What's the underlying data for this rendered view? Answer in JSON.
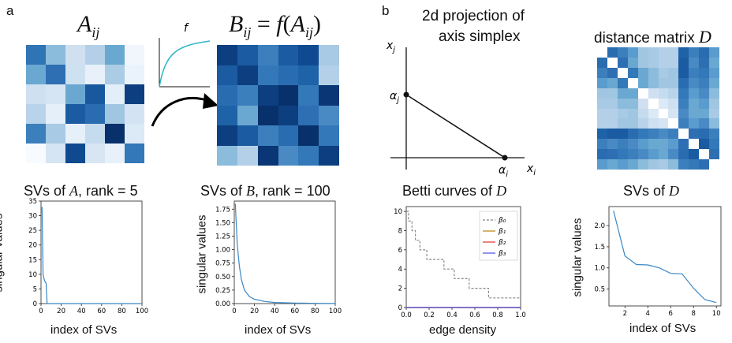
{
  "panels": {
    "a": "a",
    "b": "b"
  },
  "panel_a": {
    "matrix_A_title": "A",
    "matrix_A_sub": "ij",
    "function_label": "f",
    "matrix_B_title_lhs": "B",
    "matrix_B_title_rhs": " = f(A",
    "matrix_B_title_close": ")",
    "matrix_B_sub": "ij",
    "matrix_A_colors": [
      [
        "#2f74b5",
        "#8cbcdc",
        "#d0e0f1",
        "#b4d0e8",
        "#69a9d1",
        "#f0f6fc"
      ],
      [
        "#6aa8d1",
        "#2e6fb3",
        "#cde1f1",
        "#e8f1fa",
        "#abcce5",
        "#eaf2fb"
      ],
      [
        "#cfe0f1",
        "#d6e5f3",
        "#6aa8d1",
        "#19589f",
        "#e2eef8",
        "#0d3f80"
      ],
      [
        "#b9d3ea",
        "#e4eff9",
        "#1a5ba2",
        "#2a6cb0",
        "#a1c6e2",
        "#d3e3f3"
      ],
      [
        "#3c7fbd",
        "#a8cae4",
        "#e6f0f9",
        "#c5dbee",
        "#08306b",
        "#dce9f6"
      ],
      [
        "#f7fbff",
        "#d6e5f3",
        "#0f4a91",
        "#d8e6f4",
        "#e8f1fa",
        "#3378b8"
      ]
    ],
    "matrix_B_colors": [
      [
        "#0d3f80",
        "#1a5ba2",
        "#3c7fbd",
        "#1a5ba2",
        "#0f4a91",
        "#a8cae4"
      ],
      [
        "#1a5ba2",
        "#0d3f80",
        "#3378b8",
        "#2a6cb0",
        "#1e63a8",
        "#b4d0e8"
      ],
      [
        "#2a6cb0",
        "#3c7fbd",
        "#0d3f80",
        "#08306b",
        "#3378b8",
        "#0a3675"
      ],
      [
        "#1e63a8",
        "#6aa8d1",
        "#08306b",
        "#0d3f80",
        "#2e6fb3",
        "#4a8ac4"
      ],
      [
        "#0d3f80",
        "#1a5ba2",
        "#3c7fbd",
        "#2a6cb0",
        "#08306b",
        "#3378b8"
      ],
      [
        "#8cbcdc",
        "#b4d0e8",
        "#0a3675",
        "#4a8ac4",
        "#3378b8",
        "#0d3f80"
      ]
    ],
    "sv_A_title": "SVs of ",
    "sv_A_var": "A",
    "sv_A_rank": ", rank = 5",
    "sv_B_title": "SVs of ",
    "sv_B_var": "B",
    "sv_B_rank": ", rank = 100",
    "ylabel": "singular values",
    "xlabel": "index of SVs"
  },
  "panel_b": {
    "projection_title_1": "2d projection of",
    "projection_title_2": "axis simplex",
    "xj": "x",
    "xj_sub": "j",
    "xi": "x",
    "xi_sub": "i",
    "alpha_j": "α",
    "alpha_j_sub": "j",
    "alpha_i": "α",
    "alpha_i_sub": "i",
    "distance_title": "distance matrix ",
    "distance_var": "D",
    "betti_title": "Betti curves of ",
    "betti_var": "D",
    "betti_xlabel": "edge density",
    "svD_title": "SVs of ",
    "svD_var": "D",
    "svD_ylabel": "singular values",
    "svD_xlabel": "index of SVs",
    "distance_colors": [
      [
        "#ffffff",
        "#2a6cb0",
        "#3c7fbd",
        "#5a9ccd",
        "#a1c6e2",
        "#a8cae4",
        "#b4d0e8",
        "#b4d0e8",
        "#1e63a8",
        "#3c7fbd",
        "#2a6cb0",
        "#5a9ccd"
      ],
      [
        "#2a6cb0",
        "#ffffff",
        "#2e6fb3",
        "#69a9d1",
        "#a1c6e2",
        "#a8cae4",
        "#b4d0e8",
        "#b4d0e8",
        "#1a5ba2",
        "#4a8ac4",
        "#2e6fb3",
        "#69a9d1"
      ],
      [
        "#3c7fbd",
        "#2e6fb3",
        "#ffffff",
        "#3378b8",
        "#6aa8d1",
        "#8cbcdc",
        "#a8cae4",
        "#a1c6e2",
        "#1a5ba2",
        "#3c7fbd",
        "#3378b8",
        "#5a9ccd"
      ],
      [
        "#5a9ccd",
        "#69a9d1",
        "#3378b8",
        "#ffffff",
        "#69a9d1",
        "#8cbcdc",
        "#a1c6e2",
        "#a1c6e2",
        "#2a6cb0",
        "#4a8ac4",
        "#3c7fbd",
        "#69a9d1"
      ],
      [
        "#a1c6e2",
        "#a1c6e2",
        "#6aa8d1",
        "#69a9d1",
        "#ffffff",
        "#d0e0f1",
        "#c5dbee",
        "#b9d3ea",
        "#3378b8",
        "#5a9ccd",
        "#4a8ac4",
        "#8cbcdc"
      ],
      [
        "#a8cae4",
        "#a8cae4",
        "#8cbcdc",
        "#8cbcdc",
        "#d0e0f1",
        "#ffffff",
        "#dce9f6",
        "#cfe0f1",
        "#3c7fbd",
        "#69a9d1",
        "#5a9ccd",
        "#a1c6e2"
      ],
      [
        "#b4d0e8",
        "#b4d0e8",
        "#a8cae4",
        "#a1c6e2",
        "#c5dbee",
        "#dce9f6",
        "#ffffff",
        "#d6e5f3",
        "#4a8ac4",
        "#6aa8d1",
        "#69a9d1",
        "#a8cae4"
      ],
      [
        "#b4d0e8",
        "#b4d0e8",
        "#a1c6e2",
        "#a1c6e2",
        "#b9d3ea",
        "#cfe0f1",
        "#d6e5f3",
        "#ffffff",
        "#3c7fbd",
        "#5a9ccd",
        "#4a8ac4",
        "#8cbcdc"
      ],
      [
        "#1e63a8",
        "#1a5ba2",
        "#1a5ba2",
        "#2a6cb0",
        "#3378b8",
        "#3c7fbd",
        "#4a8ac4",
        "#3c7fbd",
        "#ffffff",
        "#2e6fb3",
        "#2a6cb0",
        "#3c7fbd"
      ],
      [
        "#3c7fbd",
        "#4a8ac4",
        "#3c7fbd",
        "#4a8ac4",
        "#5a9ccd",
        "#69a9d1",
        "#6aa8d1",
        "#5a9ccd",
        "#2e6fb3",
        "#ffffff",
        "#1a5ba2",
        "#3378b8"
      ],
      [
        "#2a6cb0",
        "#2e6fb3",
        "#3378b8",
        "#3c7fbd",
        "#4a8ac4",
        "#5a9ccd",
        "#69a9d1",
        "#4a8ac4",
        "#2a6cb0",
        "#1a5ba2",
        "#ffffff",
        "#2e6fb3"
      ],
      [
        "#5a9ccd",
        "#69a9d1",
        "#5a9ccd",
        "#69a9d1",
        "#8cbcdc",
        "#a1c6e2",
        "#a8cae4",
        "#8cbcdc",
        "#3c7fbd",
        "#3378b8",
        "#2e6fb3",
        "#ffffff"
      ]
    ]
  },
  "chart_data": [
    {
      "type": "line",
      "xlim": [
        0,
        100
      ],
      "ylim": [
        0,
        35
      ],
      "xticks": [
        "0",
        "20",
        "40",
        "60",
        "80",
        "100"
      ],
      "yticks": [
        "0",
        "5",
        "10",
        "15",
        "20",
        "25",
        "30",
        "35"
      ],
      "series": [
        {
          "x": [
            1,
            2,
            3,
            4,
            5,
            6,
            10,
            100
          ],
          "values": [
            33,
            10,
            8.5,
            7.5,
            7,
            0,
            0,
            0
          ]
        }
      ]
    },
    {
      "type": "line",
      "xlim": [
        0,
        100
      ],
      "ylim": [
        0,
        1.9
      ],
      "xticks": [
        "0",
        "20",
        "40",
        "60",
        "80",
        "100"
      ],
      "yticks": [
        "0.00",
        "0.25",
        "0.50",
        "0.75",
        "1.00",
        "1.25",
        "1.50",
        "1.75"
      ],
      "series": [
        {
          "x": [
            1,
            2,
            3,
            5,
            7,
            10,
            15,
            20,
            30,
            40,
            60,
            80,
            100
          ],
          "values": [
            1.85,
            1.45,
            1.1,
            0.7,
            0.45,
            0.25,
            0.13,
            0.08,
            0.04,
            0.02,
            0.01,
            0.005,
            0.002
          ]
        }
      ]
    },
    {
      "type": "line",
      "xlim": [
        0,
        1
      ],
      "ylim": [
        0,
        10.5
      ],
      "xticks": [
        "0.0",
        "0.2",
        "0.4",
        "0.6",
        "0.8",
        "1.0"
      ],
      "yticks": [
        "0",
        "2",
        "4",
        "6",
        "8",
        "10"
      ],
      "series": [
        {
          "name": "β₀",
          "color": "#888888",
          "dashed": true,
          "x": [
            0,
            0.02,
            0.02,
            0.05,
            0.05,
            0.08,
            0.08,
            0.12,
            0.12,
            0.18,
            0.18,
            0.33,
            0.33,
            0.42,
            0.42,
            0.55,
            0.55,
            0.72,
            0.72,
            1.0
          ],
          "values": [
            10,
            10,
            9,
            9,
            8,
            8,
            7,
            7,
            6,
            6,
            5,
            5,
            4,
            4,
            3,
            3,
            2,
            2,
            1,
            1
          ]
        },
        {
          "name": "β₁",
          "color": "#b8860b",
          "x": [
            0,
            1
          ],
          "values": [
            0,
            0
          ]
        },
        {
          "name": "β₂",
          "color": "#e03030",
          "x": [
            0,
            1
          ],
          "values": [
            0,
            0
          ]
        },
        {
          "name": "β₃",
          "color": "#4a4ae0",
          "x": [
            0,
            1
          ],
          "values": [
            0,
            0
          ]
        }
      ],
      "legend": "top-right"
    },
    {
      "type": "line",
      "xlim": [
        0.6,
        10.4
      ],
      "ylim": [
        0.1,
        2.45
      ],
      "xticks": [
        "2",
        "4",
        "6",
        "8",
        "10"
      ],
      "yticks": [
        "0.5",
        "1.0",
        "1.5",
        "2.0"
      ],
      "series": [
        {
          "x": [
            1,
            2,
            3,
            4,
            5,
            6,
            7,
            8,
            9,
            10
          ],
          "values": [
            2.35,
            1.28,
            1.08,
            1.07,
            1.0,
            0.87,
            0.86,
            0.52,
            0.25,
            0.18
          ]
        }
      ]
    }
  ]
}
